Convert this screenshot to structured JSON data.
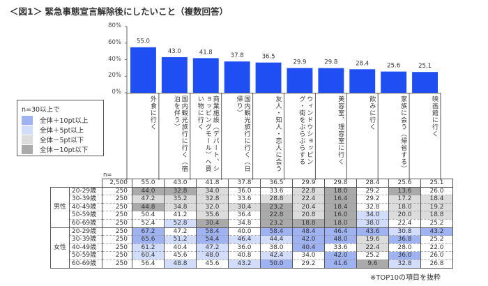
{
  "title": "＜図1＞ 緊急事態宣言解除後にしたいこと（複数回答）",
  "colors": {
    "bar": "#1f4ef2",
    "plus10": "#9fb3f3",
    "plus5": "#d2dcfb",
    "minus5": "#dcdcdc",
    "minus10": "#aaaaaa"
  },
  "legend": {
    "header": "n=30以上で",
    "items": [
      {
        "label": "全体＋10pt以上",
        "color": "#9fb3f3"
      },
      {
        "label": "全体＋5pt以上",
        "color": "#d2dcfb"
      },
      {
        "label": "全体－5pt以下",
        "color": "#dcdcdc"
      },
      {
        "label": "全体－10pt以下",
        "color": "#aaaaaa"
      }
    ]
  },
  "chart_data": {
    "type": "bar",
    "ylim": [
      0,
      80
    ],
    "yticks": [
      "0%",
      "20%",
      "40%",
      "60%",
      "80%"
    ],
    "categories": [
      "外食に行く",
      "国内観光旅行に行く（宿泊を伴う）",
      "商業施設（デパート、ショッピングモール）へ買い物に行く",
      "国内観光旅行に行く（日帰り）",
      "友人・知人・恋人に会う",
      "ウィンドウショッピング・街をぶらぶらする",
      "美容室、理容室に行く",
      "飲みに行く",
      "家族に会う（帰省する）",
      "映画館に行く"
    ],
    "values": [
      55.0,
      43.0,
      41.8,
      37.8,
      36.5,
      29.9,
      29.8,
      28.4,
      25.6,
      25.1
    ],
    "value_labels": [
      "55.0",
      "43.0",
      "41.8",
      "37.8",
      "36.5",
      "29.9",
      "29.8",
      "28.4",
      "25.6",
      "25.1"
    ]
  },
  "table": {
    "n_header": "n=",
    "total": {
      "n": "2,500",
      "values": [
        "55.0",
        "43.0",
        "41.8",
        "37.8",
        "36.5",
        "29.9",
        "29.8",
        "28.4",
        "25.6",
        "25.1"
      ]
    },
    "groups": [
      {
        "label": "男性",
        "rows": [
          {
            "age": "20-29歳",
            "n": "250",
            "values": [
              "44.0",
              "32.8",
              "34.0",
              "36.0",
              "33.6",
              "22.8",
              "18.0",
              "29.2",
              "13.6",
              "26.0"
            ]
          },
          {
            "age": "30-39歳",
            "n": "250",
            "values": [
              "47.2",
              "35.2",
              "32.8",
              "33.6",
              "28.8",
              "22.4",
              "16.4",
              "29.2",
              "17.2",
              "18.4"
            ]
          },
          {
            "age": "40-49歳",
            "n": "250",
            "values": [
              "44.8",
              "34.8",
              "32.0",
              "30.4",
              "23.2",
              "20.4",
              "18.4",
              "32.8",
              "18.0",
              "19.2"
            ]
          },
          {
            "age": "50-59歳",
            "n": "250",
            "values": [
              "50.4",
              "41.2",
              "35.6",
              "36.4",
              "22.8",
              "20.8",
              "16.0",
              "34.0",
              "20.0",
              "18.8"
            ]
          },
          {
            "age": "60-69歳",
            "n": "250",
            "values": [
              "52.4",
              "52.8",
              "30.4",
              "34.8",
              "23.2",
              "18.8",
              "18.0",
              "38.0",
              "22.4",
              "25.2"
            ]
          }
        ]
      },
      {
        "label": "女性",
        "rows": [
          {
            "age": "20-29歳",
            "n": "250",
            "values": [
              "67.2",
              "47.2",
              "58.4",
              "40.0",
              "58.4",
              "48.4",
              "46.4",
              "43.6",
              "30.8",
              "43.2"
            ]
          },
          {
            "age": "30-39歳",
            "n": "250",
            "values": [
              "65.6",
              "51.2",
              "54.4",
              "46.4",
              "44.4",
              "42.0",
              "48.0",
              "19.6",
              "36.8",
              "25.2"
            ]
          },
          {
            "age": "40-49歳",
            "n": "250",
            "values": [
              "61.2",
              "40.4",
              "47.2",
              "36.0",
              "38.0",
              "40.4",
              "33.6",
              "22.4",
              "28.0",
              "22.0"
            ]
          },
          {
            "age": "50-59歳",
            "n": "250",
            "values": [
              "60.4",
              "45.6",
              "48.0",
              "40.8",
              "42.4",
              "34.0",
              "42.0",
              "25.2",
              "36.0",
              "26.0"
            ]
          },
          {
            "age": "60-69歳",
            "n": "250",
            "values": [
              "56.4",
              "48.8",
              "45.6",
              "43.2",
              "50.0",
              "29.2",
              "41.6",
              "9.6",
              "32.8",
              "26.8"
            ]
          }
        ]
      }
    ]
  },
  "note": "※TOP10の項目を抜粋"
}
